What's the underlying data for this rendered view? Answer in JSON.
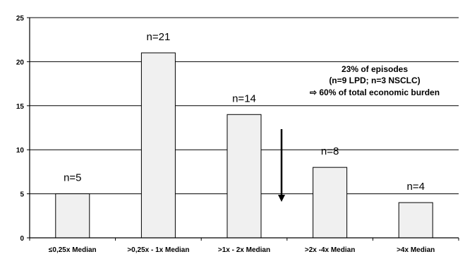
{
  "chart_data": {
    "type": "bar",
    "categories": [
      "≤0,25x Median",
      ">0,25x - 1x Median",
      ">1x - 2x Median",
      ">2x -4x Median",
      ">4x Median"
    ],
    "values": [
      5,
      21,
      14,
      8,
      4
    ],
    "data_labels": [
      "n=5",
      "n=21",
      "n=14",
      "n=8",
      "n=4"
    ],
    "yticks": [
      0,
      5,
      10,
      15,
      20,
      25
    ],
    "ylim": [
      0,
      25
    ],
    "grid": true,
    "bar_color": "#f0f0f0",
    "annotation": {
      "lines": [
        "23% of episodes",
        "(n=9 LPD; n=3 NSCLC)",
        "⇨ 60% of total economic burden"
      ],
      "arrow": "down"
    }
  }
}
